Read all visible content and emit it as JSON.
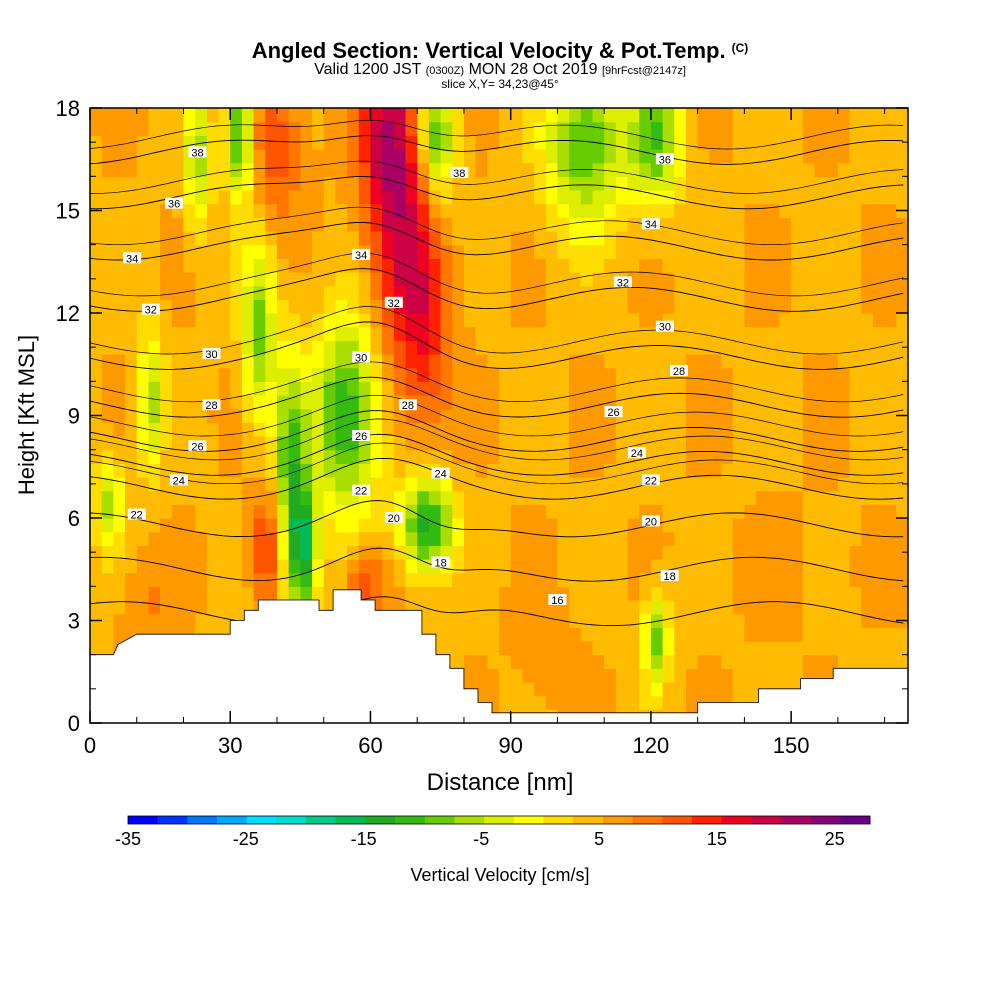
{
  "header": {
    "title": "Angled Section: Vertical Velocity & Pot.Temp.",
    "title_unit": "(C)",
    "subtitle_main_a": "Valid 1200 JST",
    "subtitle_small_a": "(0300Z)",
    "subtitle_main_b": "MON 28 Oct 2019",
    "subtitle_small_b": "[9hrFcst@2147z]",
    "slice": "slice X,Y= 34,23@45°"
  },
  "chart_data": {
    "type": "heatmap",
    "title": "Angled Section: Vertical Velocity & Pot.Temp.",
    "xlabel": "Distance [nm]",
    "ylabel": "Height [Kft MSL]",
    "xlim": [
      0,
      175
    ],
    "ylim": [
      0,
      18
    ],
    "x_ticks": [
      0,
      30,
      60,
      90,
      120,
      150
    ],
    "y_ticks": [
      0,
      3,
      6,
      9,
      12,
      15,
      18
    ],
    "grid": false,
    "fill_variable": "Vertical Velocity [cm/s]",
    "contour_variable": "Pot.Temp. (C)",
    "colorbar": {
      "label": "Vertical Velocity [cm/s]",
      "min": -35,
      "max": 28,
      "tick_labels": [
        "-35",
        "-25",
        "-15",
        "-5",
        "5",
        "15",
        "25"
      ],
      "tick_values": [
        -35,
        -25,
        -15,
        -5,
        5,
        15,
        25
      ],
      "colors": [
        "#0000ff",
        "#0033ff",
        "#0077ff",
        "#00aaff",
        "#00ddff",
        "#00ddcc",
        "#00cc88",
        "#00bb55",
        "#22aa22",
        "#33bb11",
        "#66cc00",
        "#aadd00",
        "#ddee00",
        "#ffff00",
        "#ffdd00",
        "#ffbb00",
        "#ff9900",
        "#ff7700",
        "#ff5500",
        "#ff2200",
        "#ee0022",
        "#cc0044",
        "#aa0066",
        "#880077",
        "#660088"
      ]
    },
    "terrain": [
      [
        0,
        2.0
      ],
      [
        5,
        2.0
      ],
      [
        6,
        2.3
      ],
      [
        10,
        2.6
      ],
      [
        18,
        2.6
      ],
      [
        25,
        2.6
      ],
      [
        30,
        2.6
      ],
      [
        30,
        3.0
      ],
      [
        33,
        3.0
      ],
      [
        33,
        3.3
      ],
      [
        36,
        3.3
      ],
      [
        36,
        3.6
      ],
      [
        44,
        3.6
      ],
      [
        49,
        3.6
      ],
      [
        49,
        3.3
      ],
      [
        52,
        3.3
      ],
      [
        52,
        3.9
      ],
      [
        58,
        3.9
      ],
      [
        58,
        3.6
      ],
      [
        61,
        3.6
      ],
      [
        61,
        3.3
      ],
      [
        68,
        3.3
      ],
      [
        71,
        3.3
      ],
      [
        71,
        2.6
      ],
      [
        74,
        2.6
      ],
      [
        74,
        2.0
      ],
      [
        77,
        2.0
      ],
      [
        77,
        1.6
      ],
      [
        80,
        1.6
      ],
      [
        80,
        1.0
      ],
      [
        83,
        1.0
      ],
      [
        83,
        0.6
      ],
      [
        86,
        0.6
      ],
      [
        86,
        0.3
      ],
      [
        130,
        0.3
      ],
      [
        130,
        0.6
      ],
      [
        143,
        0.6
      ],
      [
        143,
        1.0
      ],
      [
        152,
        1.0
      ],
      [
        152,
        1.3
      ],
      [
        159,
        1.3
      ],
      [
        159,
        1.6
      ],
      [
        175,
        1.6
      ]
    ],
    "updrafts": [
      {
        "x": 67,
        "y": 15.0,
        "sx": 5,
        "sy": 3.5,
        "w": 17
      },
      {
        "x": 63,
        "y": 17.2,
        "sx": 4,
        "sy": 1.8,
        "w": 14
      },
      {
        "x": 72,
        "y": 11.5,
        "sx": 4,
        "sy": 2.0,
        "w": 12
      },
      {
        "x": 40,
        "y": 17.0,
        "sx": 4,
        "sy": 1.5,
        "w": 12
      },
      {
        "x": 38,
        "y": 5.2,
        "sx": 2.5,
        "sy": 1.2,
        "w": 14
      },
      {
        "x": 59,
        "y": 4.0,
        "sx": 3,
        "sy": 0.8,
        "w": 13
      },
      {
        "x": 12,
        "y": 3.5,
        "sx": 4,
        "sy": 1.0,
        "w": 8
      },
      {
        "x": 98,
        "y": 2.0,
        "sx": 5,
        "sy": 1.2,
        "w": 7
      },
      {
        "x": 150,
        "y": 4.5,
        "sx": 8,
        "sy": 1.5,
        "w": 6
      },
      {
        "x": 20,
        "y": 5.0,
        "sx": 10,
        "sy": 1.5,
        "w": 5
      }
    ],
    "downdrafts": [
      {
        "x": 55,
        "y": 9.0,
        "sx": 5,
        "sy": 2.0,
        "w": -13
      },
      {
        "x": 72,
        "y": 5.8,
        "sx": 4,
        "sy": 1.0,
        "w": -14
      },
      {
        "x": 43,
        "y": 7.0,
        "sx": 2.5,
        "sy": 2.5,
        "w": -11
      },
      {
        "x": 46,
        "y": 5.0,
        "sx": 2,
        "sy": 1.2,
        "w": -12
      },
      {
        "x": 36,
        "y": 11.5,
        "sx": 2.5,
        "sy": 1.8,
        "w": -8
      },
      {
        "x": 32,
        "y": 17.2,
        "sx": 2,
        "sy": 1.3,
        "w": -12
      },
      {
        "x": 74,
        "y": 17.2,
        "sx": 3,
        "sy": 1.3,
        "w": -12
      },
      {
        "x": 106,
        "y": 17.0,
        "sx": 6,
        "sy": 1.8,
        "w": -10
      },
      {
        "x": 121,
        "y": 17.0,
        "sx": 4,
        "sy": 1.3,
        "w": -9
      },
      {
        "x": 121,
        "y": 2.5,
        "sx": 2,
        "sy": 1.0,
        "w": -8
      },
      {
        "x": 13,
        "y": 9.5,
        "sx": 2,
        "sy": 1.5,
        "w": -6
      },
      {
        "x": 4,
        "y": 6.5,
        "sx": 2,
        "sy": 1.0,
        "w": -6
      },
      {
        "x": 23,
        "y": 16.5,
        "sx": 2,
        "sy": 1.5,
        "w": -6
      }
    ],
    "isentropes": {
      "levels": [
        16,
        18,
        20,
        22,
        24,
        26,
        28,
        30,
        32,
        34,
        36,
        38
      ],
      "base": [
        {
          "theta": 16,
          "y": 3.2
        },
        {
          "theta": 18,
          "y": 4.5
        },
        {
          "theta": 20,
          "y": 5.8
        },
        {
          "theta": 22,
          "y": 6.9
        },
        {
          "theta": 24,
          "y": 7.6
        },
        {
          "theta": 26,
          "y": 8.3
        },
        {
          "theta": 28,
          "y": 9.3
        },
        {
          "theta": 30,
          "y": 10.7
        },
        {
          "theta": 32,
          "y": 12.4
        },
        {
          "theta": 34,
          "y": 13.9
        },
        {
          "theta": 36,
          "y": 15.4
        },
        {
          "theta": 38,
          "y": 16.7
        }
      ],
      "labels": [
        {
          "text": "38",
          "x": 23,
          "y": 16.7
        },
        {
          "text": "36",
          "x": 18,
          "y": 15.2
        },
        {
          "text": "34",
          "x": 9,
          "y": 13.6
        },
        {
          "text": "32",
          "x": 13,
          "y": 12.1
        },
        {
          "text": "30",
          "x": 26,
          "y": 10.8
        },
        {
          "text": "28",
          "x": 26,
          "y": 9.3
        },
        {
          "text": "26",
          "x": 23,
          "y": 8.1
        },
        {
          "text": "24",
          "x": 19,
          "y": 7.1
        },
        {
          "text": "22",
          "x": 10,
          "y": 6.1
        },
        {
          "text": "38",
          "x": 79,
          "y": 16.1
        },
        {
          "text": "34",
          "x": 58,
          "y": 13.7
        },
        {
          "text": "32",
          "x": 65,
          "y": 12.3
        },
        {
          "text": "30",
          "x": 58,
          "y": 10.7
        },
        {
          "text": "28",
          "x": 68,
          "y": 9.3
        },
        {
          "text": "26",
          "x": 58,
          "y": 8.4
        },
        {
          "text": "24",
          "x": 75,
          "y": 7.3
        },
        {
          "text": "22",
          "x": 58,
          "y": 6.8
        },
        {
          "text": "20",
          "x": 65,
          "y": 6.0
        },
        {
          "text": "18",
          "x": 75,
          "y": 4.7
        },
        {
          "text": "36",
          "x": 123,
          "y": 16.5
        },
        {
          "text": "34",
          "x": 120,
          "y": 14.6
        },
        {
          "text": "32",
          "x": 114,
          "y": 12.9
        },
        {
          "text": "30",
          "x": 123,
          "y": 11.6
        },
        {
          "text": "28",
          "x": 126,
          "y": 10.3
        },
        {
          "text": "26",
          "x": 112,
          "y": 9.1
        },
        {
          "text": "24",
          "x": 117,
          "y": 7.9
        },
        {
          "text": "22",
          "x": 120,
          "y": 7.1
        },
        {
          "text": "20",
          "x": 120,
          "y": 5.9
        },
        {
          "text": "18",
          "x": 124,
          "y": 4.3
        },
        {
          "text": "16",
          "x": 100,
          "y": 3.6
        }
      ]
    }
  }
}
